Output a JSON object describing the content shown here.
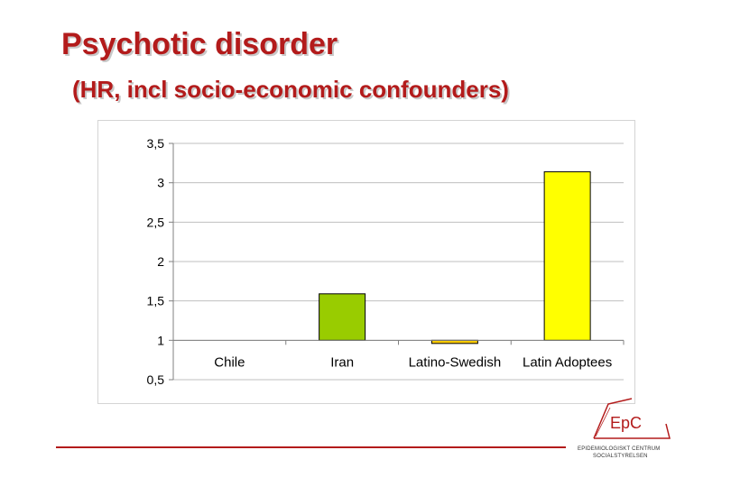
{
  "slide": {
    "title": "Psychotic disorder",
    "subtitle": "(HR, incl socio-economic confounders)"
  },
  "logo": {
    "mark": "EpC",
    "line1": "EPIDEMIOLOGISKT CENTRUM",
    "line2": "SOCIALSTYRELSEN",
    "color": "#b31b1b"
  },
  "chart_data": {
    "type": "bar",
    "title": "",
    "xlabel": "",
    "ylabel": "",
    "categories": [
      "Chile",
      "Iran",
      "Latino-Swedish",
      "Latin Adoptees"
    ],
    "values": [
      1.0,
      1.59,
      0.96,
      3.14
    ],
    "colors": [
      "#99cc00",
      "#99cc00",
      "#ffcc00",
      "#ffff00"
    ],
    "baseline": 1,
    "ylim": [
      0.5,
      3.5
    ],
    "yticks": [
      "0,5",
      "1",
      "1,5",
      "2",
      "2,5",
      "3",
      "3,5"
    ],
    "ytick_values": [
      0.5,
      1,
      1.5,
      2,
      2.5,
      3,
      3.5
    ],
    "grid": true,
    "legend": "none"
  }
}
